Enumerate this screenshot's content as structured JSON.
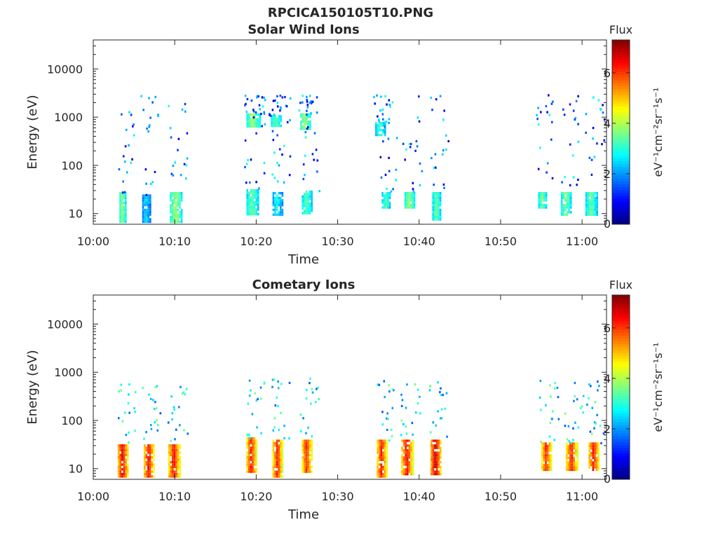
{
  "figure_title": "RPCICA150105T10.PNG",
  "chart_data": [
    {
      "type": "heatmap",
      "title": "Solar Wind Ions",
      "xlabel": "Time",
      "ylabel": "Energy (eV)",
      "y_scale": "log",
      "y_ticks": [
        "10",
        "100",
        "1000",
        "10000"
      ],
      "x_ticks": [
        "10:00",
        "10:10",
        "10:20",
        "10:30",
        "10:40",
        "10:50",
        "11:00"
      ],
      "xlim": [
        "10:00",
        "11:03"
      ],
      "ylim": [
        6,
        40000
      ],
      "colorbar": {
        "label": "Flux",
        "unit": "eV⁻¹cm⁻²sr⁻¹s⁻¹",
        "ticks": [
          "0",
          "2",
          "4",
          "6"
        ],
        "range": [
          0,
          7.3
        ]
      },
      "bursts": [
        {
          "t_min": 3.2,
          "t_max": 4.0,
          "e_min": 7,
          "e_max": 28,
          "flux": 3.8
        },
        {
          "t_min": 6.0,
          "t_max": 7.0,
          "e_min": 7,
          "e_max": 25,
          "flux": 2.5
        },
        {
          "t_min": 9.4,
          "t_max": 10.8,
          "e_min": 7,
          "e_max": 28,
          "flux": 3.9
        },
        {
          "t_min": 18.8,
          "t_max": 20.4,
          "e_min": 650,
          "e_max": 1200,
          "flux": 3.8
        },
        {
          "t_min": 21.8,
          "t_max": 23.0,
          "e_min": 650,
          "e_max": 1100,
          "flux": 3.5
        },
        {
          "t_min": 25.4,
          "t_max": 26.6,
          "e_min": 550,
          "e_max": 1200,
          "flux": 3.9
        },
        {
          "t_min": 18.8,
          "t_max": 20.2,
          "e_min": 10,
          "e_max": 32,
          "flux": 3.5
        },
        {
          "t_min": 22.0,
          "t_max": 23.2,
          "e_min": 10,
          "e_max": 28,
          "flux": 2.8
        },
        {
          "t_min": 25.6,
          "t_max": 26.8,
          "e_min": 10,
          "e_max": 30,
          "flux": 3.3
        },
        {
          "t_min": 34.6,
          "t_max": 35.8,
          "e_min": 450,
          "e_max": 800,
          "flux": 3.2
        },
        {
          "t_min": 35.4,
          "t_max": 36.4,
          "e_min": 13,
          "e_max": 28,
          "flux": 3.3
        },
        {
          "t_min": 38.2,
          "t_max": 39.4,
          "e_min": 13,
          "e_max": 28,
          "flux": 3.8
        },
        {
          "t_min": 41.6,
          "t_max": 42.6,
          "e_min": 8,
          "e_max": 28,
          "flux": 3.5
        },
        {
          "t_min": 54.6,
          "t_max": 55.6,
          "e_min": 14,
          "e_max": 28,
          "flux": 3.6
        },
        {
          "t_min": 57.4,
          "t_max": 58.6,
          "e_min": 10,
          "e_max": 28,
          "flux": 3.6
        },
        {
          "t_min": 60.4,
          "t_max": 61.8,
          "e_min": 9,
          "e_max": 28,
          "flux": 3.4
        }
      ]
    },
    {
      "type": "heatmap",
      "title": "Cometary Ions",
      "xlabel": "Time",
      "ylabel": "Energy (eV)",
      "y_scale": "log",
      "y_ticks": [
        "10",
        "100",
        "1000",
        "10000"
      ],
      "x_ticks": [
        "10:00",
        "10:10",
        "10:20",
        "10:30",
        "10:40",
        "10:50",
        "11:00"
      ],
      "xlim": [
        "10:00",
        "11:03"
      ],
      "ylim": [
        6,
        40000
      ],
      "colorbar": {
        "label": "Flux",
        "unit": "eV⁻¹cm⁻²sr⁻¹s⁻¹",
        "ticks": [
          "0",
          "2",
          "4",
          "6"
        ],
        "range": [
          0,
          7.3
        ]
      },
      "bursts": [
        {
          "t_min": 3.0,
          "t_max": 4.2,
          "e_min": 7,
          "e_max": 32,
          "flux": 6.6
        },
        {
          "t_min": 6.2,
          "t_max": 7.4,
          "e_min": 7,
          "e_max": 32,
          "flux": 6.5
        },
        {
          "t_min": 9.2,
          "t_max": 10.6,
          "e_min": 7,
          "e_max": 32,
          "flux": 6.4
        },
        {
          "t_min": 18.8,
          "t_max": 20.0,
          "e_min": 9,
          "e_max": 45,
          "flux": 6.3
        },
        {
          "t_min": 22.0,
          "t_max": 23.2,
          "e_min": 7,
          "e_max": 40,
          "flux": 6.2
        },
        {
          "t_min": 25.6,
          "t_max": 26.8,
          "e_min": 9,
          "e_max": 40,
          "flux": 6.2
        },
        {
          "t_min": 34.8,
          "t_max": 36.0,
          "e_min": 7,
          "e_max": 40,
          "flux": 6.3
        },
        {
          "t_min": 37.8,
          "t_max": 39.2,
          "e_min": 8,
          "e_max": 40,
          "flux": 6.4
        },
        {
          "t_min": 41.4,
          "t_max": 42.6,
          "e_min": 8,
          "e_max": 40,
          "flux": 6.8
        },
        {
          "t_min": 55.0,
          "t_max": 56.2,
          "e_min": 10,
          "e_max": 35,
          "flux": 6.2
        },
        {
          "t_min": 58.0,
          "t_max": 59.4,
          "e_min": 10,
          "e_max": 35,
          "flux": 6.2
        },
        {
          "t_min": 60.8,
          "t_max": 62.0,
          "e_min": 9,
          "e_max": 35,
          "flux": 6.4
        }
      ]
    }
  ]
}
